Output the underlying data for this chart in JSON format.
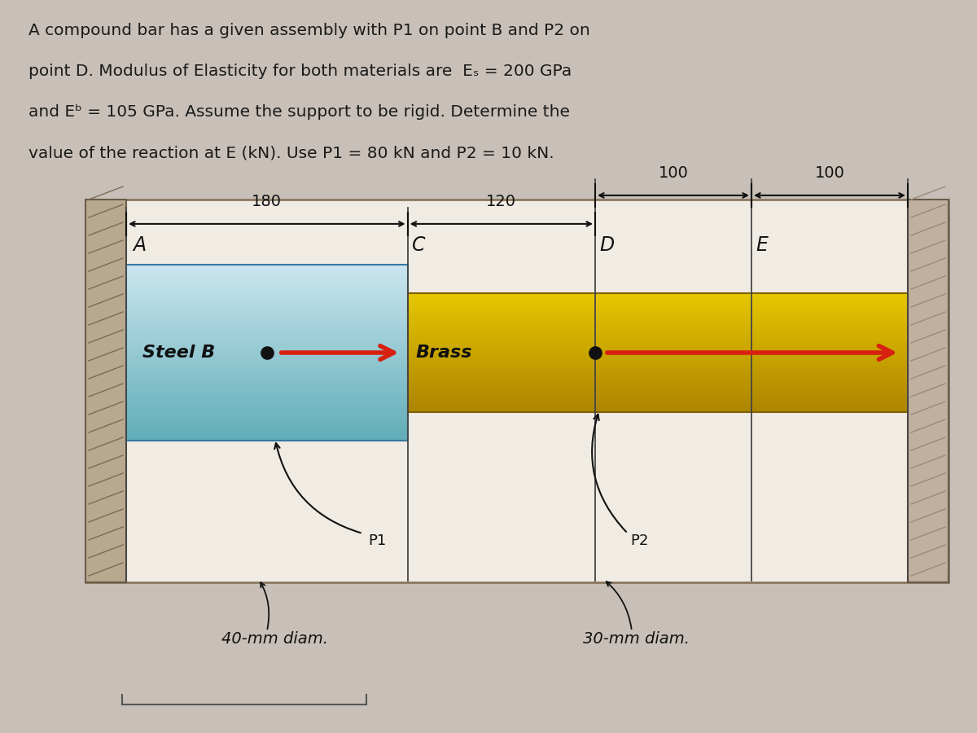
{
  "bg_color": "#c8c0b8",
  "text_color": "#1a1a1a",
  "title_lines": [
    "A compound bar has a given assembly with P1 on point B and P2 on",
    "point D. Modulus of Elasticity for both materials are  Eₛ = 200 GPa",
    "and Eᵇ = 105 GPa. Assume the support to be rigid. Determine the",
    "value of the reaction at E (kN). Use P1 = 80 kN and P2 = 10 kN."
  ],
  "diagram_bg": "#f0ece4",
  "steel_color_top": "#c0e8f4",
  "steel_color_mid": "#80c8e0",
  "steel_color_bottom": "#50a0c0",
  "brass_color_top": "#e8c850",
  "brass_color_bottom": "#c09010",
  "wall_color": "#b0a090",
  "arrow_color": "#d82010",
  "label_A": "A",
  "label_C": "C",
  "label_D": "D",
  "label_E": "E",
  "label_steel": "Steel B",
  "label_brass": "Brass",
  "label_P1": "P1",
  "label_P2": "P2",
  "label_40mm": "40-mm diam.",
  "label_30mm": "30-mm diam.",
  "dim_180": "180",
  "dim_120": "120",
  "dim_100a": "100",
  "dim_100b": "100"
}
